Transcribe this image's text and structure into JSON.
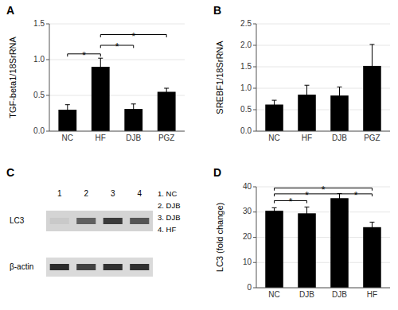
{
  "chart_data": [
    {
      "type": "bar",
      "title": "A",
      "categories": [
        "NC",
        "HF",
        "DJB",
        "PGZ"
      ],
      "values": [
        0.3,
        0.9,
        0.31,
        0.55
      ],
      "errors": [
        0.07,
        0.12,
        0.07,
        0.05
      ],
      "color": "#000000",
      "y_label": "TGF-beta1/18SrRNA",
      "ylim": [
        0,
        1.5
      ],
      "yticks": [
        {
          "value": 0.0,
          "label": "0.0"
        },
        0.5,
        {
          "value": 1.0,
          "label": "1.0"
        },
        1.5
      ],
      "annotations": [
        {
          "text": "*",
          "x1": 0,
          "x2": 1,
          "y": 1.08
        },
        {
          "text": "*",
          "x1": 1,
          "x2": 2,
          "y": 1.2
        },
        {
          "text": "*",
          "x1": 1,
          "x2": 3,
          "y": 1.35
        }
      ]
    },
    {
      "type": "bar",
      "title": "B",
      "categories": [
        "NC",
        "HF",
        "DJB",
        "PGZ"
      ],
      "values": [
        0.62,
        0.85,
        0.83,
        1.52
      ],
      "errors": [
        0.1,
        0.22,
        0.2,
        0.5
      ],
      "color": "#000000",
      "y_label": "SREBF1/18SrRNA",
      "ylim": [
        0,
        2.5
      ],
      "yticks": [
        {
          "value": 0.0,
          "label": "0.0"
        },
        0.5,
        {
          "value": 1.0,
          "label": "1.0"
        },
        1.5,
        {
          "value": 2.0,
          "label": "2.0"
        },
        2.5
      ]
    },
    {
      "type": "blot",
      "title": "C",
      "categories": [
        "1",
        "2",
        "3",
        "4"
      ],
      "series": [
        {
          "name": "LC3",
          "values": [
            0.05,
            0.55,
            0.72,
            0.6
          ]
        },
        {
          "name": "β-actin",
          "values": [
            0.8,
            0.7,
            0.78,
            0.78
          ]
        }
      ],
      "annotations": [
        "1. NC",
        "2. DJB",
        "3. DJB",
        "4. HF"
      ]
    },
    {
      "type": "bar",
      "title": "D",
      "categories": [
        "NC",
        "DJB",
        "DJB",
        "HF"
      ],
      "values": [
        30.5,
        29.5,
        35.5,
        24.0
      ],
      "errors": [
        1.2,
        2.5,
        1.8,
        2.0
      ],
      "color": "#000000",
      "y_label": "LC3 (fold change)",
      "ylim": [
        0,
        40
      ],
      "yticks": [
        0,
        10,
        20,
        30,
        40
      ],
      "annotations": [
        {
          "text": "*",
          "x1": 0,
          "x2": 1,
          "y": 34.5
        },
        {
          "text": "*",
          "x1": 0,
          "x2": 2,
          "y": 37.2
        },
        {
          "text": "*",
          "x1": 2,
          "x2": 3,
          "y": 37.2
        },
        {
          "text": "*",
          "x1": 0,
          "x2": 3,
          "y": 39.5
        }
      ]
    }
  ]
}
